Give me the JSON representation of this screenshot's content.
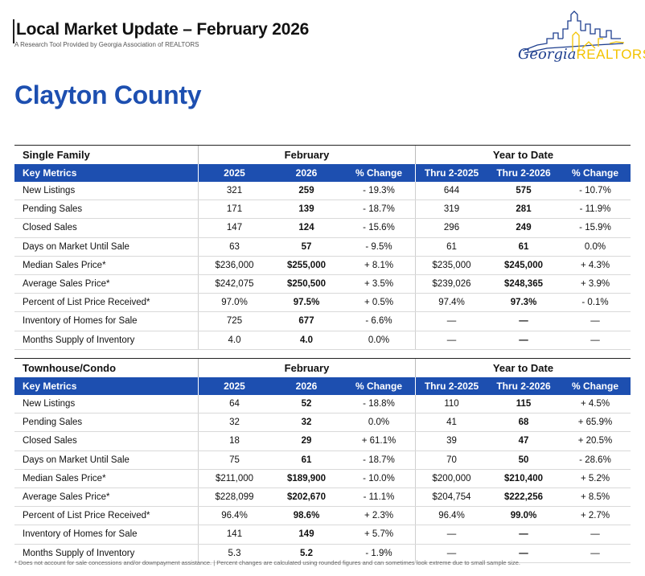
{
  "header": {
    "title": "Local Market Update – February 2026",
    "subtitle": "A Research Tool Provided by Georgia Association of REALTORS",
    "logo_text_georgia": "Georgia",
    "logo_text_realtors": "REALTORS",
    "logo_registered": "®"
  },
  "county": "Clayton County",
  "columns": {
    "key_metrics": "Key Metrics",
    "y2025": "2025",
    "y2026": "2026",
    "pct": "% Change",
    "thru2025": "Thru 2-2025",
    "thru2026": "Thru 2-2026",
    "ypct": "% Change",
    "feb_group": "February",
    "ytd_group": "Year to Date"
  },
  "single_family": {
    "label": "Single Family",
    "rows": [
      [
        "New Listings",
        "321",
        "259",
        "- 19.3%",
        "644",
        "575",
        "- 10.7%"
      ],
      [
        "Pending Sales",
        "171",
        "139",
        "- 18.7%",
        "319",
        "281",
        "- 11.9%"
      ],
      [
        "Closed Sales",
        "147",
        "124",
        "- 15.6%",
        "296",
        "249",
        "- 15.9%"
      ],
      [
        "Days on Market Until Sale",
        "63",
        "57",
        "- 9.5%",
        "61",
        "61",
        "0.0%"
      ],
      [
        "Median Sales Price*",
        "$236,000",
        "$255,000",
        "+ 8.1%",
        "$235,000",
        "$245,000",
        "+ 4.3%"
      ],
      [
        "Average Sales Price*",
        "$242,075",
        "$250,500",
        "+ 3.5%",
        "$239,026",
        "$248,365",
        "+ 3.9%"
      ],
      [
        "Percent of List Price Received*",
        "97.0%",
        "97.5%",
        "+ 0.5%",
        "97.4%",
        "97.3%",
        "- 0.1%"
      ],
      [
        "Inventory of Homes for Sale",
        "725",
        "677",
        "- 6.6%",
        "—",
        "—",
        "—"
      ],
      [
        "Months Supply of Inventory",
        "4.0",
        "4.0",
        "0.0%",
        "—",
        "—",
        "—"
      ]
    ]
  },
  "townhouse": {
    "label": "Townhouse/Condo",
    "rows": [
      [
        "New Listings",
        "64",
        "52",
        "- 18.8%",
        "110",
        "115",
        "+ 4.5%"
      ],
      [
        "Pending Sales",
        "32",
        "32",
        "0.0%",
        "41",
        "68",
        "+ 65.9%"
      ],
      [
        "Closed Sales",
        "18",
        "29",
        "+ 61.1%",
        "39",
        "47",
        "+ 20.5%"
      ],
      [
        "Days on Market Until Sale",
        "75",
        "61",
        "- 18.7%",
        "70",
        "50",
        "- 28.6%"
      ],
      [
        "Median Sales Price*",
        "$211,000",
        "$189,900",
        "- 10.0%",
        "$200,000",
        "$210,400",
        "+ 5.2%"
      ],
      [
        "Average Sales Price*",
        "$228,099",
        "$202,670",
        "- 11.1%",
        "$204,754",
        "$222,256",
        "+ 8.5%"
      ],
      [
        "Percent of List Price Received*",
        "96.4%",
        "98.6%",
        "+ 2.3%",
        "96.4%",
        "99.0%",
        "+ 2.7%"
      ],
      [
        "Inventory of Homes for Sale",
        "141",
        "149",
        "+ 5.7%",
        "—",
        "—",
        "—"
      ],
      [
        "Months Supply of Inventory",
        "5.3",
        "5.2",
        "- 1.9%",
        "—",
        "—",
        "—"
      ]
    ]
  },
  "footnote": "* Does not account for sale concessions and/or downpayment assistance. | Percent changes are calculated using rounded figures and can sometimes look extreme due to small sample size.",
  "colors": {
    "accent_blue": "#1d4fb0",
    "logo_navy": "#1e3f8f",
    "logo_gold": "#f3c300"
  }
}
